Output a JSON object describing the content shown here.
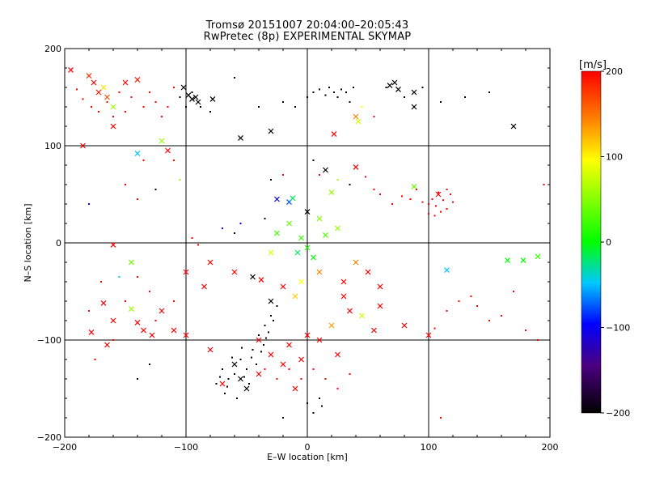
{
  "chart_data": {
    "type": "scatter",
    "title": "Tromsø 20151007 20:04:00–20:05:43",
    "subtitle": "RwPretec (8p) EXPERIMENTAL SKYMAP",
    "xlabel": "E–W location [km]",
    "ylabel": "N–S location [km]",
    "xlim": [
      -200,
      200
    ],
    "ylim": [
      -200,
      200
    ],
    "xticks": [
      "-200",
      "-100",
      "0",
      "100",
      "200"
    ],
    "yticks": [
      "-200",
      "-100",
      "0",
      "100",
      "200"
    ],
    "grid": true,
    "colorbar": {
      "label": "[m/s]",
      "range": [
        -200,
        200
      ],
      "ticks": [
        "200",
        "100",
        "0",
        "-100",
        "-200"
      ],
      "colors": [
        "#000000",
        "#4b0082",
        "#0000ff",
        "#00ffff",
        "#00ff00",
        "#ffff00",
        "#ff8000",
        "#ff0000"
      ]
    },
    "series": [
      {
        "marker": "x",
        "points": [
          [
            -195,
            178,
            200
          ],
          [
            -180,
            172,
            180
          ],
          [
            -176,
            165,
            200
          ],
          [
            -172,
            155,
            190
          ],
          [
            -168,
            160,
            110
          ],
          [
            -165,
            150,
            170
          ],
          [
            -160,
            140,
            60
          ],
          [
            -150,
            165,
            200
          ],
          [
            -140,
            168,
            190
          ],
          [
            -185,
            100,
            200
          ],
          [
            -160,
            120,
            200
          ],
          [
            -140,
            92,
            -50
          ],
          [
            -120,
            105,
            60
          ],
          [
            -115,
            95,
            200
          ],
          [
            -102,
            160,
            -200
          ],
          [
            -98,
            152,
            -200
          ],
          [
            -95,
            148,
            -200
          ],
          [
            -92,
            150,
            -200
          ],
          [
            -90,
            145,
            -200
          ],
          [
            -78,
            148,
            -200
          ],
          [
            -55,
            108,
            -200
          ],
          [
            -30,
            115,
            -200
          ],
          [
            22,
            112,
            200
          ],
          [
            40,
            130,
            150
          ],
          [
            42,
            125,
            80
          ],
          [
            68,
            162,
            -200
          ],
          [
            72,
            165,
            -200
          ],
          [
            75,
            158,
            -200
          ],
          [
            88,
            155,
            -200
          ],
          [
            88,
            140,
            -200
          ],
          [
            170,
            120,
            -200
          ],
          [
            15,
            75,
            -200
          ],
          [
            40,
            78,
            200
          ],
          [
            -25,
            45,
            -100
          ],
          [
            -15,
            42,
            -80
          ],
          [
            -12,
            46,
            -20
          ],
          [
            20,
            52,
            60
          ],
          [
            0,
            32,
            -200
          ],
          [
            88,
            58,
            40
          ],
          [
            108,
            50,
            200
          ],
          [
            -145,
            -20,
            40
          ],
          [
            -160,
            -2,
            200
          ],
          [
            -168,
            -62,
            200
          ],
          [
            -160,
            -80,
            200
          ],
          [
            -145,
            -68,
            60
          ],
          [
            -140,
            -82,
            200
          ],
          [
            -178,
            -92,
            200
          ],
          [
            -165,
            -105,
            200
          ],
          [
            -135,
            -90,
            200
          ],
          [
            -128,
            -95,
            200
          ],
          [
            -100,
            -30,
            200
          ],
          [
            -85,
            -45,
            200
          ],
          [
            -80,
            -20,
            200
          ],
          [
            -60,
            -30,
            200
          ],
          [
            -45,
            -35,
            -200
          ],
          [
            -38,
            -38,
            200
          ],
          [
            -30,
            -60,
            -200
          ],
          [
            -100,
            -95,
            200
          ],
          [
            -80,
            -110,
            200
          ],
          [
            -70,
            -145,
            200
          ],
          [
            -55,
            -140,
            -200
          ],
          [
            -60,
            -125,
            -200
          ],
          [
            -50,
            -150,
            -200
          ],
          [
            -40,
            -135,
            200
          ],
          [
            -20,
            -125,
            200
          ],
          [
            -10,
            -150,
            200
          ],
          [
            10,
            -100,
            200
          ],
          [
            20,
            -85,
            140
          ],
          [
            35,
            -70,
            200
          ],
          [
            45,
            -75,
            80
          ],
          [
            55,
            -90,
            200
          ],
          [
            60,
            -65,
            200
          ],
          [
            80,
            -85,
            200
          ],
          [
            100,
            -95,
            200
          ],
          [
            115,
            -28,
            -50
          ],
          [
            165,
            -18,
            0
          ],
          [
            178,
            -18,
            0
          ],
          [
            190,
            -14,
            20
          ],
          [
            -120,
            -70,
            200
          ],
          [
            -110,
            -90,
            200
          ],
          [
            5,
            -15,
            0
          ],
          [
            -5,
            5,
            20
          ],
          [
            15,
            8,
            30
          ],
          [
            -8,
            -10,
            -20
          ],
          [
            0,
            -5,
            10
          ],
          [
            -15,
            20,
            40
          ],
          [
            10,
            25,
            50
          ],
          [
            25,
            15,
            60
          ],
          [
            -20,
            -45,
            200
          ],
          [
            -10,
            -55,
            120
          ],
          [
            30,
            -40,
            200
          ],
          [
            40,
            -20,
            150
          ],
          [
            -30,
            -10,
            80
          ],
          [
            -25,
            10,
            20
          ],
          [
            30,
            -55,
            200
          ],
          [
            -5,
            -40,
            100
          ],
          [
            10,
            -30,
            150
          ],
          [
            50,
            -30,
            200
          ],
          [
            60,
            -45,
            200
          ],
          [
            -40,
            -100,
            200
          ],
          [
            -30,
            -115,
            200
          ],
          [
            -15,
            -105,
            200
          ],
          [
            0,
            -95,
            200
          ],
          [
            -5,
            -120,
            200
          ],
          [
            25,
            -115,
            200
          ]
        ]
      },
      {
        "marker": "dot",
        "points": [
          [
            -190,
            158,
            200
          ],
          [
            -185,
            148,
            200
          ],
          [
            -178,
            140,
            200
          ],
          [
            -172,
            135,
            200
          ],
          [
            -165,
            145,
            200
          ],
          [
            -160,
            130,
            200
          ],
          [
            -155,
            155,
            200
          ],
          [
            -150,
            135,
            200
          ],
          [
            -145,
            150,
            200
          ],
          [
            -135,
            140,
            200
          ],
          [
            -130,
            155,
            200
          ],
          [
            -125,
            145,
            200
          ],
          [
            -120,
            130,
            200
          ],
          [
            -115,
            140,
            200
          ],
          [
            -110,
            160,
            200
          ],
          [
            -105,
            150,
            -200
          ],
          [
            -100,
            140,
            -200
          ],
          [
            -95,
            155,
            -200
          ],
          [
            -88,
            140,
            -200
          ],
          [
            -80,
            135,
            -200
          ],
          [
            -60,
            170,
            -200
          ],
          [
            -40,
            140,
            -200
          ],
          [
            -20,
            145,
            -200
          ],
          [
            -10,
            140,
            -200
          ],
          [
            0,
            150,
            -200
          ],
          [
            5,
            155,
            -200
          ],
          [
            10,
            158,
            -200
          ],
          [
            15,
            152,
            -200
          ],
          [
            18,
            160,
            -200
          ],
          [
            22,
            155,
            -200
          ],
          [
            25,
            150,
            -200
          ],
          [
            28,
            158,
            -200
          ],
          [
            32,
            155,
            -200
          ],
          [
            35,
            145,
            -200
          ],
          [
            38,
            160,
            -200
          ],
          [
            45,
            140,
            100
          ],
          [
            55,
            130,
            200
          ],
          [
            65,
            160,
            -200
          ],
          [
            80,
            150,
            -200
          ],
          [
            95,
            160,
            -200
          ],
          [
            110,
            145,
            -200
          ],
          [
            130,
            150,
            -200
          ],
          [
            150,
            155,
            -200
          ],
          [
            -125,
            55,
            -200
          ],
          [
            -135,
            85,
            200
          ],
          [
            -110,
            85,
            200
          ],
          [
            -105,
            65,
            60
          ],
          [
            -180,
            40,
            -100
          ],
          [
            -150,
            60,
            200
          ],
          [
            -140,
            45,
            200
          ],
          [
            -95,
            5,
            200
          ],
          [
            -90,
            -2,
            200
          ],
          [
            -70,
            15,
            -100
          ],
          [
            -60,
            10,
            -200
          ],
          [
            -55,
            20,
            -100
          ],
          [
            -35,
            25,
            -200
          ],
          [
            -30,
            65,
            -200
          ],
          [
            -20,
            70,
            200
          ],
          [
            5,
            85,
            -200
          ],
          [
            10,
            70,
            200
          ],
          [
            25,
            65,
            60
          ],
          [
            35,
            60,
            -200
          ],
          [
            48,
            68,
            200
          ],
          [
            55,
            55,
            200
          ],
          [
            60,
            50,
            200
          ],
          [
            70,
            40,
            200
          ],
          [
            78,
            48,
            200
          ],
          [
            85,
            45,
            200
          ],
          [
            90,
            55,
            200
          ],
          [
            95,
            42,
            200
          ],
          [
            100,
            30,
            200
          ],
          [
            103,
            45,
            200
          ],
          [
            106,
            38,
            200
          ],
          [
            108,
            52,
            200
          ],
          [
            112,
            44,
            200
          ],
          [
            115,
            35,
            200
          ],
          [
            118,
            50,
            200
          ],
          [
            120,
            42,
            200
          ],
          [
            110,
            32,
            200
          ],
          [
            105,
            28,
            200
          ],
          [
            100,
            40,
            200
          ],
          [
            115,
            55,
            200
          ],
          [
            195,
            60,
            200
          ],
          [
            -130,
            -125,
            -200
          ],
          [
            -140,
            -140,
            -200
          ],
          [
            -175,
            -120,
            200
          ],
          [
            -160,
            -100,
            200
          ],
          [
            -150,
            -60,
            200
          ],
          [
            -140,
            -35,
            200
          ],
          [
            -130,
            -50,
            200
          ],
          [
            -110,
            -60,
            200
          ],
          [
            -125,
            -80,
            200
          ],
          [
            -155,
            -35,
            -50
          ],
          [
            -170,
            -40,
            200
          ],
          [
            -180,
            -70,
            200
          ],
          [
            -55,
            -120,
            -200
          ],
          [
            -60,
            -135,
            -200
          ],
          [
            -65,
            -140,
            -200
          ],
          [
            -50,
            -130,
            -200
          ],
          [
            -45,
            -110,
            -200
          ],
          [
            -40,
            -95,
            -200
          ],
          [
            -35,
            -85,
            -200
          ],
          [
            -30,
            -75,
            -200
          ],
          [
            -25,
            -65,
            -200
          ],
          [
            -70,
            -130,
            -200
          ],
          [
            -75,
            -145,
            -200
          ],
          [
            -68,
            -155,
            -200
          ],
          [
            -58,
            -160,
            -200
          ],
          [
            -48,
            -145,
            -200
          ],
          [
            -42,
            -125,
            -200
          ],
          [
            -36,
            -105,
            -200
          ],
          [
            -32,
            -92,
            -200
          ],
          [
            -28,
            -80,
            -200
          ],
          [
            -54,
            -108,
            -200
          ],
          [
            -62,
            -118,
            -200
          ],
          [
            -72,
            -138,
            -200
          ],
          [
            -66,
            -148,
            -200
          ],
          [
            -52,
            -138,
            -200
          ],
          [
            -46,
            -118,
            -200
          ],
          [
            -38,
            -112,
            -200
          ],
          [
            -34,
            -98,
            -200
          ],
          [
            0,
            -165,
            -200
          ],
          [
            5,
            -175,
            -200
          ],
          [
            10,
            -160,
            -200
          ],
          [
            12,
            -168,
            -200
          ],
          [
            -20,
            -180,
            -200
          ],
          [
            110,
            -180,
            200
          ],
          [
            105,
            -88,
            200
          ],
          [
            115,
            -70,
            200
          ],
          [
            125,
            -60,
            200
          ],
          [
            135,
            -55,
            200
          ],
          [
            140,
            -65,
            200
          ],
          [
            150,
            -80,
            200
          ],
          [
            160,
            -75,
            200
          ],
          [
            170,
            -50,
            200
          ],
          [
            180,
            -90,
            200
          ],
          [
            190,
            -100,
            200
          ],
          [
            -15,
            -130,
            200
          ],
          [
            -5,
            -140,
            200
          ],
          [
            5,
            -130,
            200
          ],
          [
            15,
            -140,
            200
          ],
          [
            25,
            -150,
            200
          ],
          [
            35,
            -135,
            200
          ],
          [
            -25,
            -140,
            200
          ],
          [
            -35,
            -130,
            200
          ]
        ]
      }
    ]
  }
}
